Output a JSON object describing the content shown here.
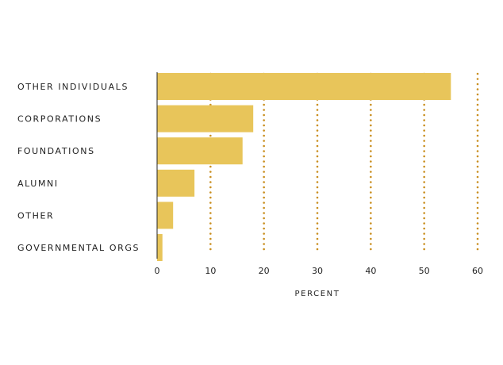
{
  "chart_data": {
    "type": "bar",
    "orientation": "horizontal",
    "categories": [
      "OTHER INDIVIDUALS",
      "CORPORATIONS",
      "FOUNDATIONS",
      "ALUMNI",
      "OTHER",
      "GOVERNMENTAL ORGS"
    ],
    "values": [
      55,
      18,
      16,
      7,
      3,
      1
    ],
    "xlabel": "PERCENT",
    "ylabel": "",
    "title": "",
    "xlim": [
      0,
      60
    ],
    "ticks": [
      0,
      10,
      20,
      30,
      40,
      50,
      60
    ],
    "tick_labels": [
      "0",
      "10",
      "20",
      "30",
      "40",
      "50",
      "60"
    ],
    "grid": "vertical dotted",
    "colors": {
      "bar": "#E8C55A",
      "grid": "#C98E1E",
      "axis": "#222222",
      "text": "#222222"
    }
  }
}
